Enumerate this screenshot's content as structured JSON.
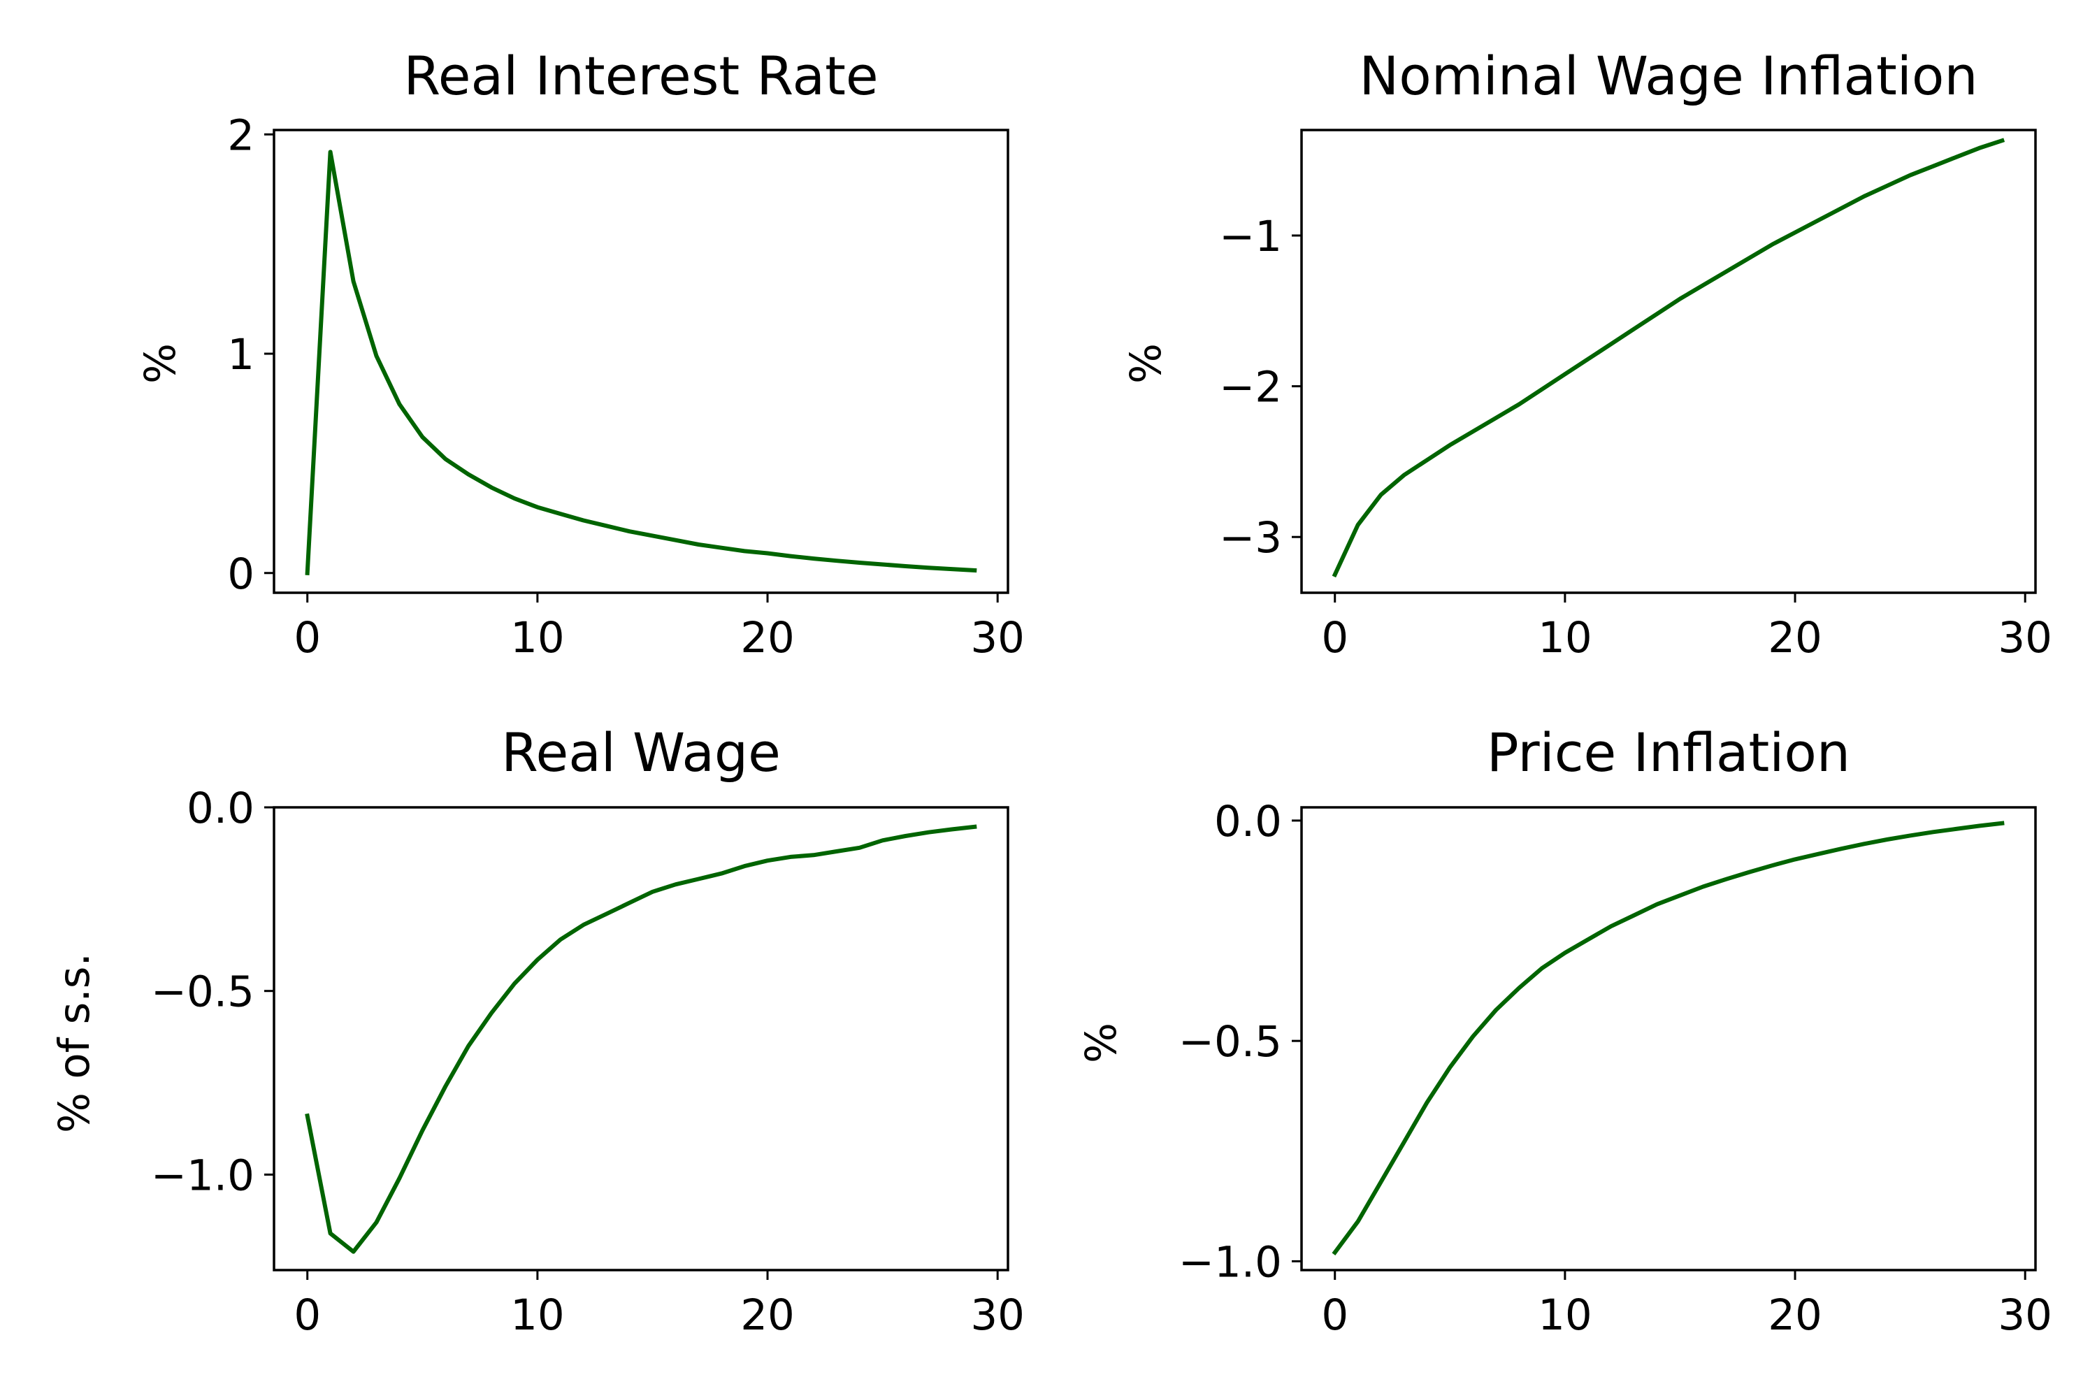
{
  "line_color": "#006400",
  "chart_data": [
    {
      "type": "line",
      "title": "Real Interest Rate",
      "xlabel": "",
      "ylabel": "%",
      "xlim": [
        -1.45,
        30.45
      ],
      "ylim": [
        -0.09,
        2.02
      ],
      "xticks": [
        0,
        10,
        20,
        30
      ],
      "xtick_labels": [
        "0",
        "10",
        "20",
        "30"
      ],
      "yticks": [
        0,
        1,
        2
      ],
      "ytick_labels": [
        "0",
        "1",
        "2"
      ],
      "grid": false,
      "series": [
        {
          "x": [
            0,
            1,
            2,
            3,
            4,
            5,
            6,
            7,
            8,
            9,
            10,
            11,
            12,
            13,
            14,
            15,
            16,
            17,
            18,
            19,
            20,
            21,
            22,
            23,
            24,
            25,
            26,
            27,
            28,
            29
          ],
          "values": [
            0.0,
            1.92,
            1.33,
            0.99,
            0.77,
            0.62,
            0.52,
            0.45,
            0.39,
            0.34,
            0.3,
            0.27,
            0.24,
            0.215,
            0.19,
            0.17,
            0.15,
            0.13,
            0.115,
            0.1,
            0.09,
            0.077,
            0.066,
            0.056,
            0.047,
            0.039,
            0.031,
            0.024,
            0.018,
            0.012
          ]
        }
      ]
    },
    {
      "type": "line",
      "title": "Nominal Wage Inflation",
      "xlabel": "",
      "ylabel": "%",
      "xlim": [
        -1.45,
        30.45
      ],
      "ylim": [
        -3.37,
        -0.3
      ],
      "xticks": [
        0,
        10,
        20,
        30
      ],
      "xtick_labels": [
        "0",
        "10",
        "20",
        "30"
      ],
      "yticks": [
        -3,
        -2,
        -1
      ],
      "ytick_labels": [
        "−3",
        "−2",
        "−1"
      ],
      "grid": false,
      "series": [
        {
          "x": [
            0,
            1,
            2,
            3,
            4,
            5,
            6,
            7,
            8,
            9,
            10,
            11,
            12,
            13,
            14,
            15,
            16,
            17,
            18,
            19,
            20,
            21,
            22,
            23,
            24,
            25,
            26,
            27,
            28,
            29
          ],
          "values": [
            -3.25,
            -2.92,
            -2.72,
            -2.59,
            -2.49,
            -2.39,
            -2.3,
            -2.21,
            -2.12,
            -2.02,
            -1.92,
            -1.82,
            -1.72,
            -1.62,
            -1.52,
            -1.42,
            -1.33,
            -1.24,
            -1.15,
            -1.06,
            -0.98,
            -0.9,
            -0.82,
            -0.74,
            -0.67,
            -0.6,
            -0.54,
            -0.48,
            -0.42,
            -0.37
          ]
        }
      ]
    },
    {
      "type": "line",
      "title": "Real Wage",
      "xlabel": "",
      "ylabel": "% of s.s.",
      "xlim": [
        -1.45,
        30.45
      ],
      "ylim": [
        -1.26,
        0.0
      ],
      "xticks": [
        0,
        10,
        20,
        30
      ],
      "xtick_labels": [
        "0",
        "10",
        "20",
        "30"
      ],
      "yticks": [
        -1.0,
        -0.5,
        0.0
      ],
      "ytick_labels": [
        "−1.0",
        "−0.5",
        "0.0"
      ],
      "grid": false,
      "series": [
        {
          "x": [
            0,
            1,
            2,
            3,
            4,
            5,
            6,
            7,
            8,
            9,
            10,
            11,
            12,
            13,
            14,
            15,
            16,
            17,
            18,
            19,
            20,
            21,
            22,
            23,
            24,
            25,
            26,
            27,
            28,
            29
          ],
          "values": [
            -0.84,
            -1.16,
            -1.21,
            -1.13,
            -1.01,
            -0.88,
            -0.76,
            -0.65,
            -0.56,
            -0.48,
            -0.415,
            -0.36,
            -0.32,
            -0.29,
            -0.26,
            -0.23,
            -0.21,
            -0.195,
            -0.18,
            -0.16,
            -0.145,
            -0.135,
            -0.13,
            -0.12,
            -0.11,
            -0.09,
            -0.078,
            -0.068,
            -0.06,
            -0.053
          ]
        }
      ]
    },
    {
      "type": "line",
      "title": "Price Inflation",
      "xlabel": "",
      "ylabel": "%",
      "xlim": [
        -1.45,
        30.45
      ],
      "ylim": [
        -1.02,
        0.03
      ],
      "xticks": [
        0,
        10,
        20,
        30
      ],
      "xtick_labels": [
        "0",
        "10",
        "20",
        "30"
      ],
      "yticks": [
        -1.0,
        -0.5,
        0.0
      ],
      "ytick_labels": [
        "−1.0",
        "−0.5",
        "0.0"
      ],
      "grid": false,
      "series": [
        {
          "x": [
            0,
            1,
            2,
            3,
            4,
            5,
            6,
            7,
            8,
            9,
            10,
            11,
            12,
            13,
            14,
            15,
            16,
            17,
            18,
            19,
            20,
            21,
            22,
            23,
            24,
            25,
            26,
            27,
            28,
            29
          ],
          "values": [
            -0.98,
            -0.91,
            -0.82,
            -0.73,
            -0.64,
            -0.56,
            -0.49,
            -0.43,
            -0.38,
            -0.335,
            -0.3,
            -0.27,
            -0.24,
            -0.215,
            -0.19,
            -0.17,
            -0.15,
            -0.133,
            -0.117,
            -0.102,
            -0.088,
            -0.076,
            -0.064,
            -0.053,
            -0.043,
            -0.034,
            -0.026,
            -0.019,
            -0.012,
            -0.006
          ]
        }
      ]
    }
  ]
}
